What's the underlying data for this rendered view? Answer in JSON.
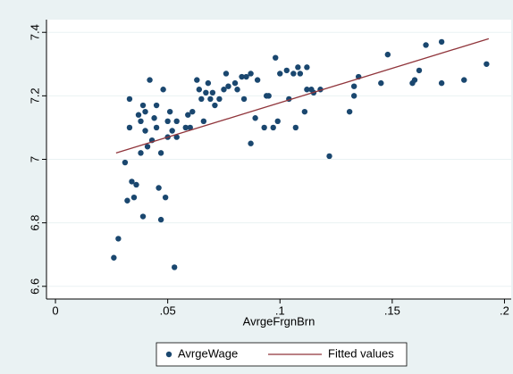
{
  "chart_data": {
    "type": "scatter",
    "x_label": "AvrgeFrgnBrn",
    "xlim": [
      -0.004,
      0.203
    ],
    "ylim": [
      6.56,
      7.44
    ],
    "xticks": [
      0,
      {
        "value": 0.05,
        "label": ".05"
      },
      {
        "value": 0.1,
        "label": ".1"
      },
      {
        "value": 0.15,
        "label": ".15"
      },
      {
        "value": 0.2,
        "label": ".2"
      }
    ],
    "yticks": [
      6.6,
      6.8,
      7,
      7.2,
      7.4
    ],
    "grid": true,
    "legend": "bottom",
    "series": [
      {
        "name": "AvrgeWage",
        "type": "scatter",
        "color": "#1a476f",
        "x": [
          0.026,
          0.028,
          0.031,
          0.032,
          0.033,
          0.033,
          0.034,
          0.035,
          0.036,
          0.037,
          0.038,
          0.038,
          0.039,
          0.039,
          0.04,
          0.04,
          0.041,
          0.042,
          0.043,
          0.044,
          0.045,
          0.045,
          0.046,
          0.047,
          0.047,
          0.048,
          0.049,
          0.05,
          0.05,
          0.051,
          0.052,
          0.053,
          0.054,
          0.054,
          0.058,
          0.059,
          0.06,
          0.061,
          0.063,
          0.064,
          0.065,
          0.066,
          0.067,
          0.068,
          0.069,
          0.07,
          0.071,
          0.073,
          0.075,
          0.076,
          0.077,
          0.08,
          0.081,
          0.083,
          0.084,
          0.085,
          0.087,
          0.087,
          0.089,
          0.09,
          0.093,
          0.094,
          0.095,
          0.097,
          0.098,
          0.099,
          0.1,
          0.103,
          0.104,
          0.106,
          0.107,
          0.108,
          0.109,
          0.111,
          0.112,
          0.112,
          0.114,
          0.115,
          0.118,
          0.122,
          0.131,
          0.133,
          0.133,
          0.135,
          0.145,
          0.148,
          0.159,
          0.16,
          0.162,
          0.165,
          0.172,
          0.172,
          0.182,
          0.192
        ],
        "values": [
          6.69,
          6.75,
          6.99,
          6.87,
          7.19,
          7.1,
          6.93,
          6.88,
          6.92,
          7.14,
          7.12,
          7.02,
          6.82,
          7.17,
          7.09,
          7.15,
          7.04,
          7.25,
          7.06,
          7.13,
          7.17,
          7.1,
          6.91,
          6.81,
          7.02,
          7.22,
          6.88,
          7.12,
          7.07,
          7.15,
          7.09,
          6.66,
          7.07,
          7.12,
          7.1,
          7.14,
          7.1,
          7.15,
          7.25,
          7.22,
          7.19,
          7.12,
          7.21,
          7.24,
          7.19,
          7.21,
          7.17,
          7.19,
          7.22,
          7.27,
          7.23,
          7.24,
          7.22,
          7.26,
          7.19,
          7.26,
          7.27,
          7.05,
          7.13,
          7.25,
          7.1,
          7.2,
          7.2,
          7.1,
          7.32,
          7.12,
          7.27,
          7.28,
          7.19,
          7.27,
          7.1,
          7.29,
          7.27,
          7.15,
          7.29,
          7.22,
          7.22,
          7.21,
          7.22,
          7.01,
          7.15,
          7.2,
          7.23,
          7.26,
          7.24,
          7.33,
          7.24,
          7.25,
          7.28,
          7.36,
          7.37,
          7.24,
          7.25,
          7.3
        ]
      },
      {
        "name": "Fitted values",
        "type": "line",
        "color": "#90353b",
        "x": [
          0.027,
          0.193
        ],
        "values": [
          7.02,
          7.38
        ]
      }
    ]
  }
}
